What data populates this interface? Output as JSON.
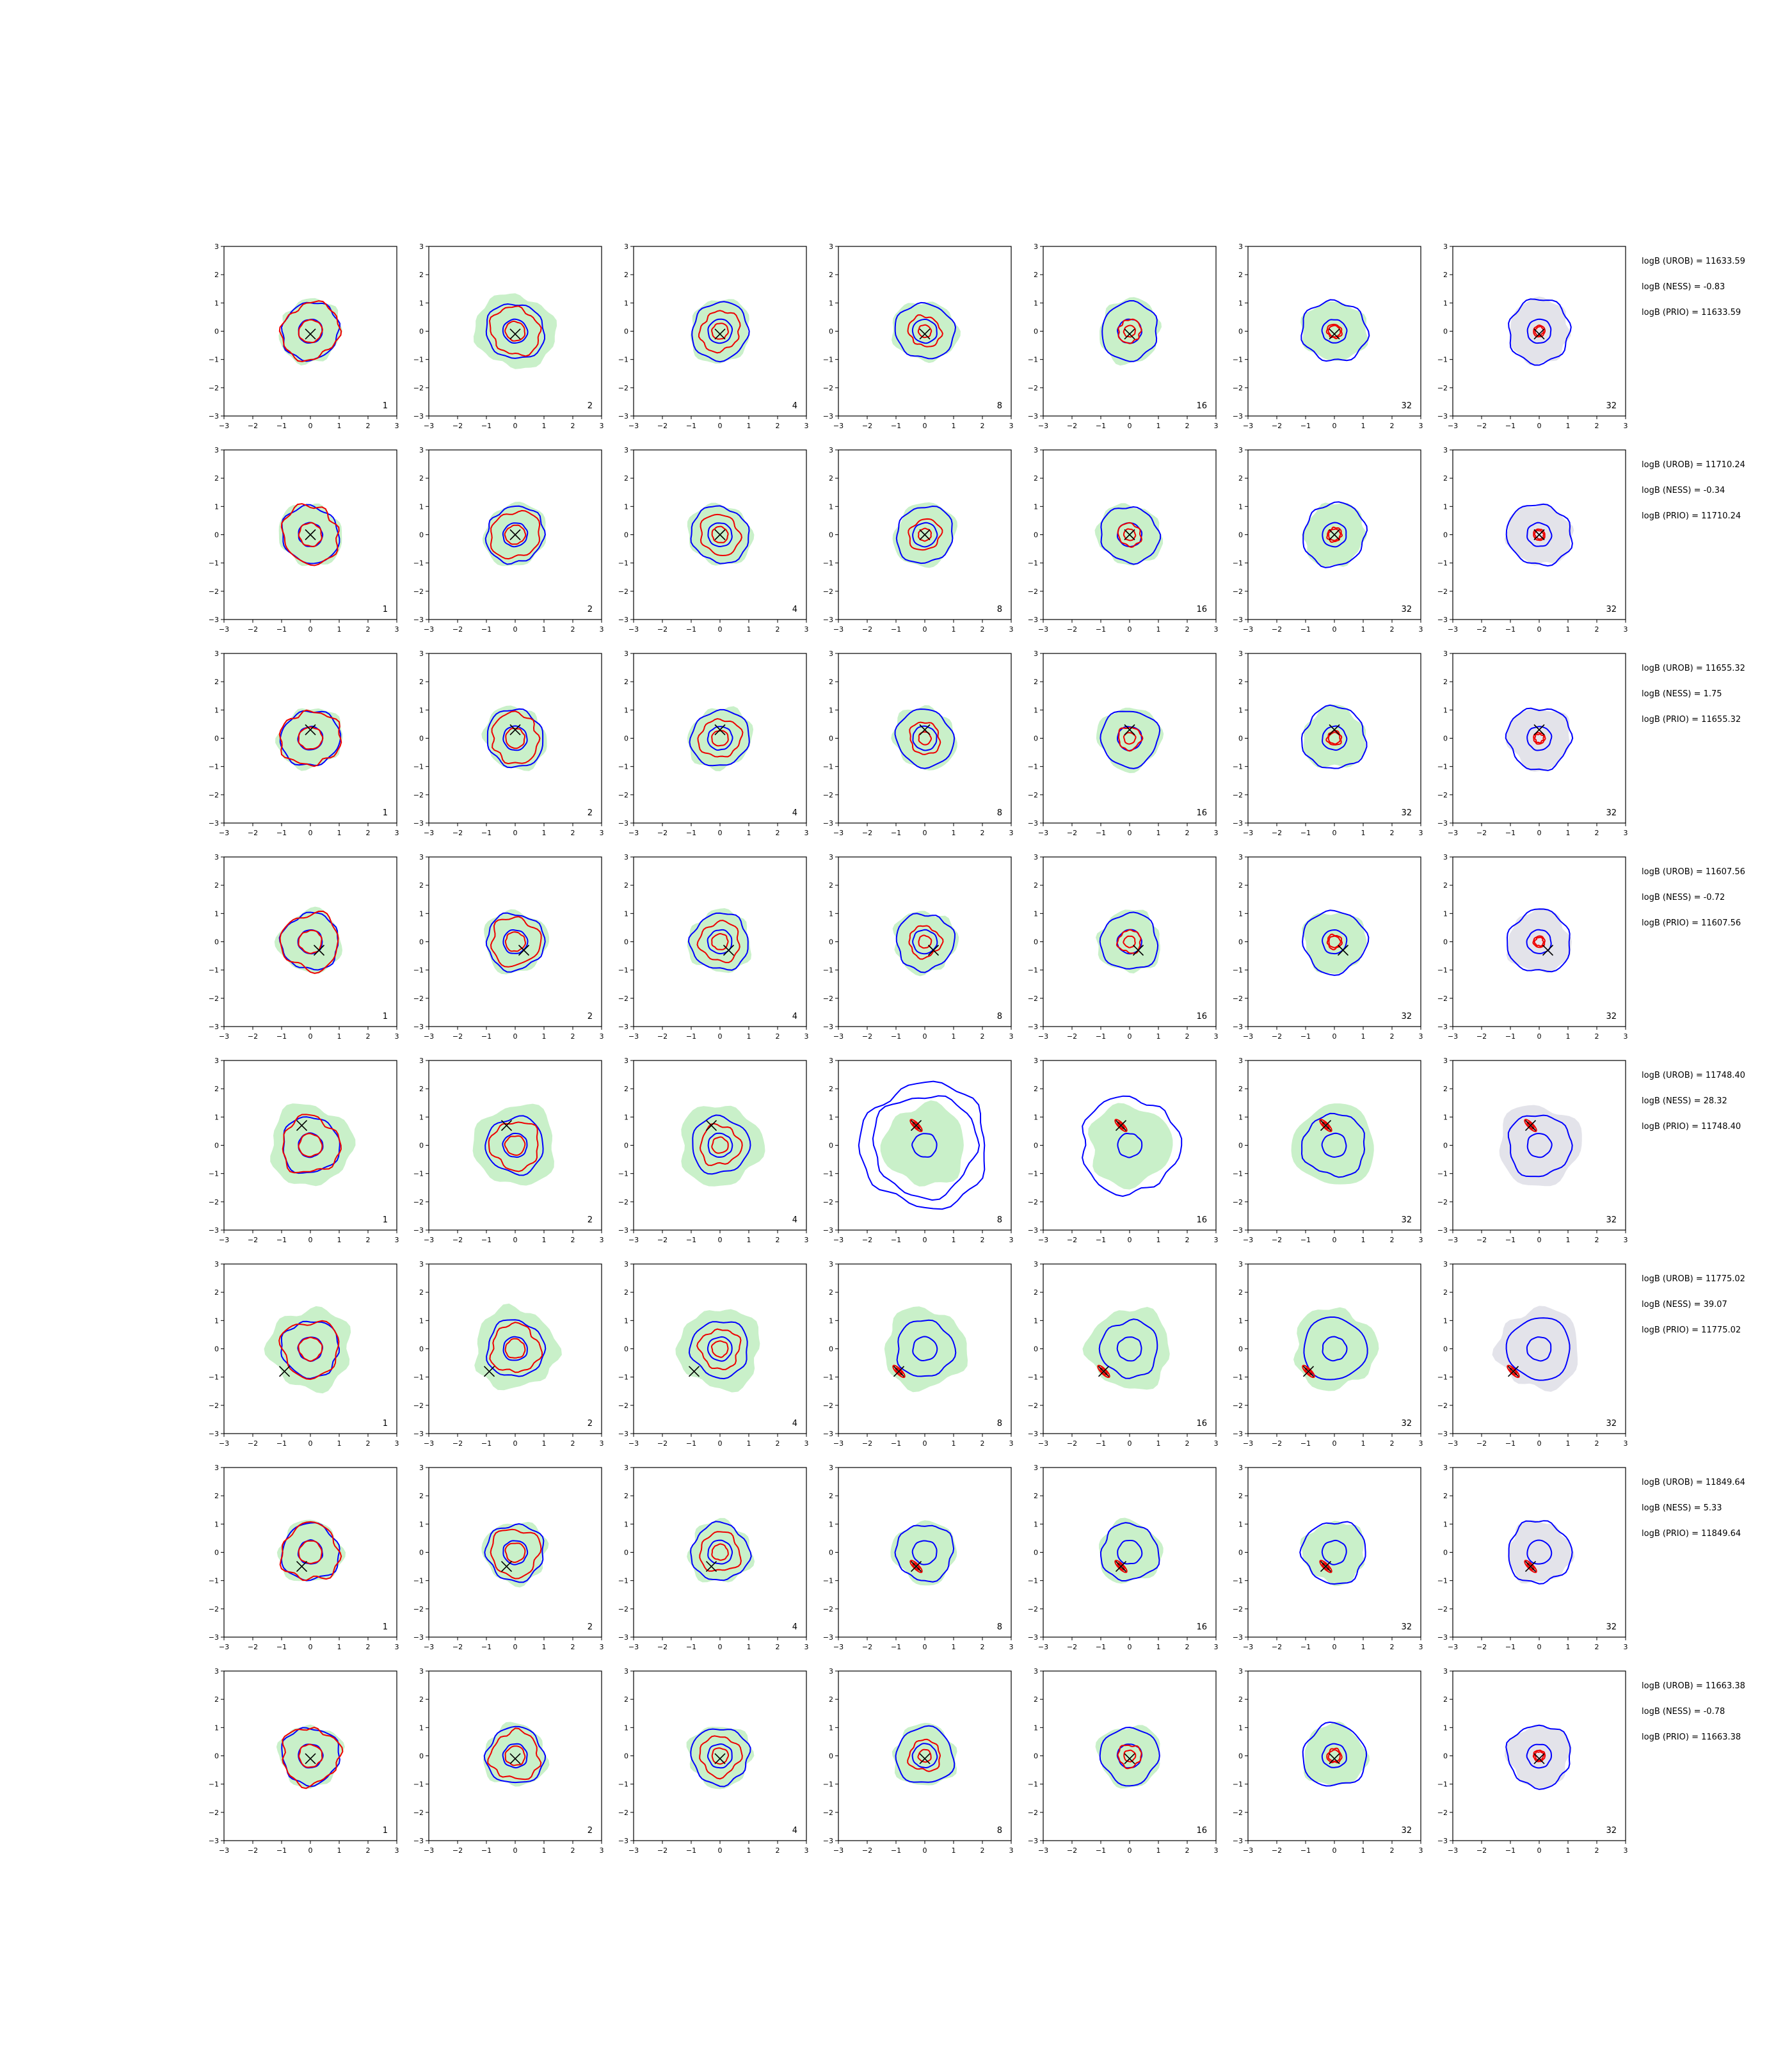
{
  "chart_data": {
    "type": "contour-grid",
    "rows": 8,
    "cols": 7,
    "axis": {
      "xlim": [
        -3,
        3
      ],
      "ylim": [
        -3,
        3
      ],
      "xticks": [
        "−3",
        "−2",
        "−1",
        "0",
        "1",
        "2",
        "3"
      ],
      "yticks": [
        "3",
        "2",
        "1",
        "0",
        "−1",
        "−2",
        "−3"
      ]
    },
    "column_labels": [
      "1",
      "2",
      "4",
      "8",
      "16",
      "32",
      "32"
    ],
    "colors": {
      "fill_green": "#c9f0c9",
      "fill_grey": "#e3e3ea",
      "contour_blue": "#0000ff",
      "contour_red": "#ee0000",
      "marker": "#000000"
    },
    "row_stats": [
      {
        "urob": "logB (UROB) = 11633.59",
        "ness": "logB (NESS) = -0.83",
        "prio": "logB (PRIO) = 11633.59",
        "marker": [
          0.0,
          -0.1
        ]
      },
      {
        "urob": "logB (UROB) = 11710.24",
        "ness": "logB (NESS) = -0.34",
        "prio": "logB (PRIO) = 11710.24",
        "marker": [
          0.0,
          0.0
        ]
      },
      {
        "urob": "logB (UROB) = 11655.32",
        "ness": "logB (NESS) = 1.75",
        "prio": "logB (PRIO) = 11655.32",
        "marker": [
          0.0,
          0.3
        ]
      },
      {
        "urob": "logB (UROB) = 11607.56",
        "ness": "logB (NESS) = -0.72",
        "prio": "logB (PRIO) = 11607.56",
        "marker": [
          0.3,
          -0.3
        ]
      },
      {
        "urob": "logB (UROB) = 11748.40",
        "ness": "logB (NESS) = 28.32",
        "prio": "logB (PRIO) = 11748.40",
        "marker": [
          -0.3,
          0.7
        ]
      },
      {
        "urob": "logB (UROB) = 11775.02",
        "ness": "logB (NESS) = 39.07",
        "prio": "logB (PRIO) = 11775.02",
        "marker": [
          -0.9,
          -0.8
        ]
      },
      {
        "urob": "logB (UROB) = 11849.64",
        "ness": "logB (NESS) = 5.33",
        "prio": "logB (PRIO) = 11849.64",
        "marker": [
          -0.3,
          -0.5
        ]
      },
      {
        "urob": "logB (UROB) = 11663.38",
        "ness": "logB (NESS) = -0.78",
        "prio": "logB (PRIO) = 11663.38",
        "marker": [
          0.0,
          -0.1
        ]
      }
    ]
  }
}
